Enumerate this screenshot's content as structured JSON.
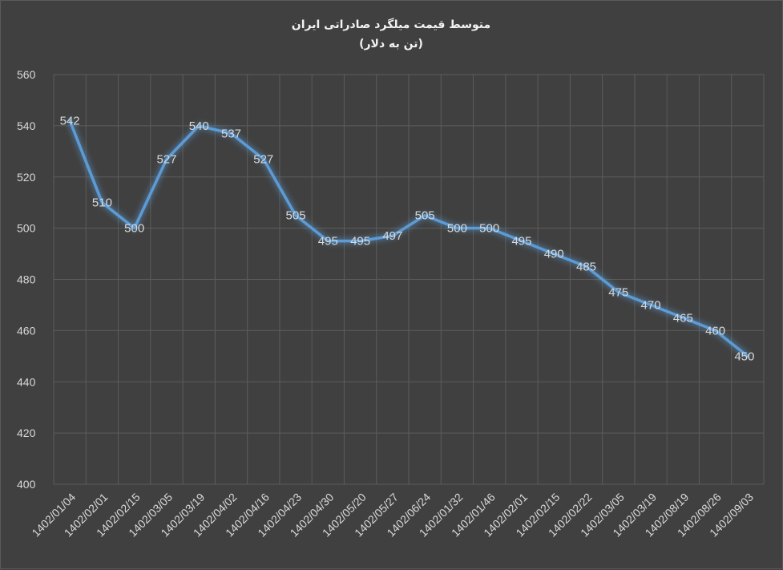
{
  "chart_data": {
    "type": "line",
    "title": "متوسط قیمت میلگرد صادراتی ایران",
    "subtitle": "(تن به دلار)",
    "categories": [
      "1402/01/04",
      "1402/02/01",
      "1402/02/15",
      "1402/03/05",
      "1402/03/19",
      "1402/04/02",
      "1402/04/16",
      "1402/04/23",
      "1402/04/30",
      "1402/05/20",
      "1402/05/27",
      "1402/06/24",
      "1402/01/32",
      "1402/01/46",
      "1402/02/01",
      "1402/02/15",
      "1402/02/22",
      "1402/03/05",
      "1402/03/19",
      "1402/08/19",
      "1402/08/26",
      "1402/09/03"
    ],
    "series": [
      {
        "values": [
          542,
          510,
          500,
          527,
          540,
          537,
          527,
          505,
          495,
          495,
          497,
          505,
          500,
          500,
          495,
          490,
          485,
          475,
          470,
          465,
          460,
          450
        ]
      }
    ],
    "yticks": [
      "560",
      "540",
      "520",
      "500",
      "480",
      "460",
      "440",
      "420",
      "400"
    ],
    "ylim": [
      400,
      560
    ],
    "grid": true,
    "line_color": "#5b9bd5",
    "background_color": "#404040"
  }
}
